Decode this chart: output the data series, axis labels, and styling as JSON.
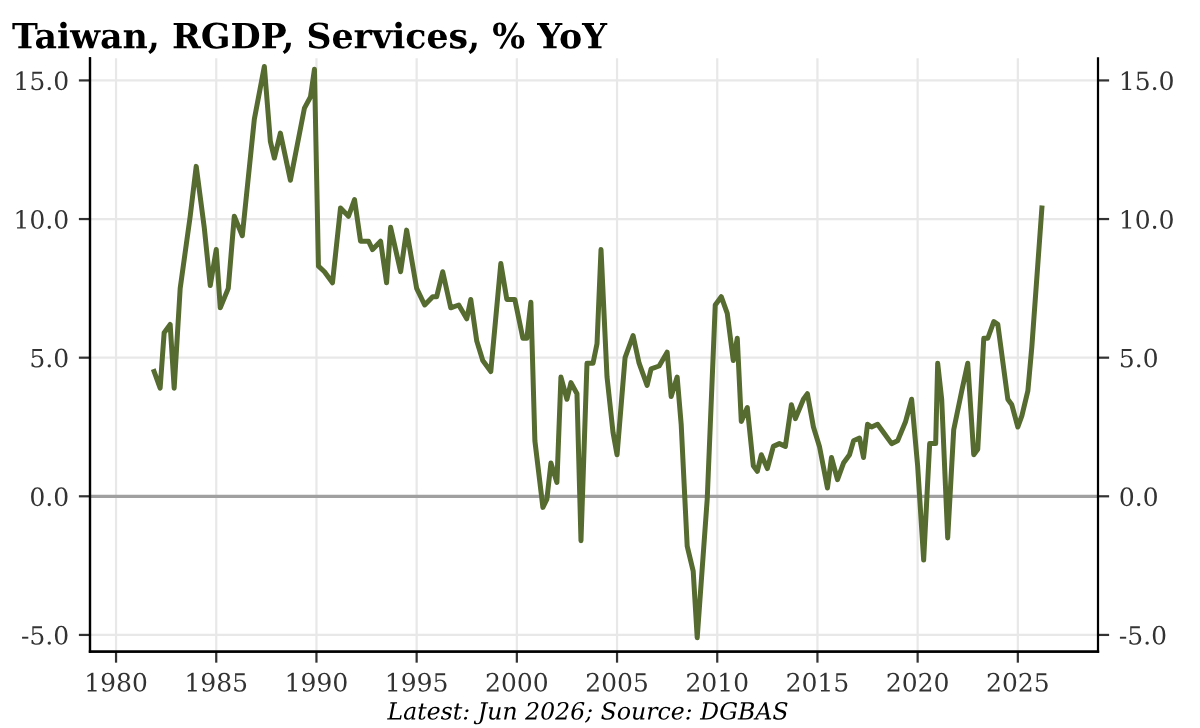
{
  "chart_data": {
    "type": "line",
    "title": "Taiwan, RGDP, Services, % YoY",
    "annotations": [
      "Latest: Jun 2026; Source: DGBAS"
    ],
    "x": [
      1981.9,
      1982.2,
      1982.4,
      1982.7,
      1982.9,
      1983.2,
      1983.7,
      1984.0,
      1984.4,
      1984.7,
      1985.0,
      1985.2,
      1985.6,
      1985.9,
      1986.3,
      1986.9,
      1987.4,
      1987.7,
      1987.9,
      1988.2,
      1988.7,
      1989.4,
      1989.7,
      1989.9,
      1990.1,
      1990.4,
      1990.8,
      1991.2,
      1991.6,
      1991.9,
      1992.2,
      1992.6,
      1992.8,
      1993.2,
      1993.5,
      1993.7,
      1994.2,
      1994.5,
      1995.0,
      1995.4,
      1995.8,
      1996.0,
      1996.3,
      1996.7,
      1997.1,
      1997.5,
      1997.7,
      1998.0,
      1998.3,
      1998.7,
      1999.2,
      1999.5,
      1999.9,
      2000.3,
      2000.5,
      2000.7,
      2000.9,
      2001.3,
      2001.5,
      2001.7,
      2002.0,
      2002.2,
      2002.5,
      2002.7,
      2003.0,
      2003.2,
      2003.5,
      2003.8,
      2004.0,
      2004.2,
      2004.5,
      2004.8,
      2005.0,
      2005.4,
      2005.8,
      2006.1,
      2006.5,
      2006.7,
      2007.1,
      2007.5,
      2007.7,
      2008.0,
      2008.2,
      2008.5,
      2008.8,
      2009.0,
      2009.5,
      2009.9,
      2010.2,
      2010.5,
      2010.8,
      2011.0,
      2011.2,
      2011.5,
      2011.8,
      2012.0,
      2012.2,
      2012.5,
      2012.8,
      2013.1,
      2013.4,
      2013.7,
      2013.9,
      2014.3,
      2014.5,
      2014.8,
      2015.1,
      2015.5,
      2015.7,
      2016.0,
      2016.3,
      2016.6,
      2016.8,
      2017.1,
      2017.3,
      2017.5,
      2017.7,
      2018.0,
      2018.3,
      2018.7,
      2019.0,
      2019.4,
      2019.7,
      2020.0,
      2020.3,
      2020.6,
      2020.9,
      2021.0,
      2021.2,
      2021.5,
      2021.8,
      2022.2,
      2022.5,
      2022.8,
      2023.0,
      2023.3,
      2023.5,
      2023.8,
      2024.0,
      2024.5,
      2024.7,
      2025.0,
      2025.2,
      2025.5,
      2025.7,
      2026.2
    ],
    "series": [
      {
        "color": "#556b2f",
        "values": [
          4.5,
          3.9,
          5.9,
          6.2,
          3.9,
          7.5,
          10.1,
          11.9,
          9.7,
          7.6,
          8.9,
          6.8,
          7.5,
          10.1,
          9.4,
          13.6,
          15.5,
          12.8,
          12.2,
          13.1,
          11.4,
          14.0,
          14.4,
          15.4,
          8.3,
          8.1,
          7.7,
          10.4,
          10.1,
          10.7,
          9.2,
          9.2,
          8.9,
          9.2,
          7.7,
          9.7,
          8.1,
          9.6,
          7.5,
          6.9,
          7.2,
          7.2,
          8.1,
          6.8,
          6.9,
          6.4,
          7.1,
          5.6,
          4.9,
          4.5,
          8.4,
          7.1,
          7.1,
          5.7,
          5.7,
          7.0,
          2.0,
          -0.4,
          -0.1,
          1.2,
          0.5,
          4.3,
          3.5,
          4.1,
          3.7,
          -1.6,
          4.8,
          4.8,
          5.5,
          8.9,
          4.3,
          2.3,
          1.5,
          5.0,
          5.8,
          4.8,
          4.0,
          4.6,
          4.7,
          5.2,
          3.6,
          4.3,
          2.6,
          -1.8,
          -2.7,
          -5.1,
          -0.1,
          6.9,
          7.2,
          6.6,
          4.9,
          5.7,
          2.7,
          3.2,
          1.1,
          0.9,
          1.5,
          1.0,
          1.8,
          1.9,
          1.8,
          3.3,
          2.8,
          3.5,
          3.7,
          2.5,
          1.8,
          0.3,
          1.4,
          0.6,
          1.2,
          1.5,
          2.0,
          2.1,
          1.4,
          2.6,
          2.5,
          2.6,
          2.3,
          1.9,
          2.0,
          2.7,
          3.5,
          1.1,
          -2.3,
          1.9,
          1.9,
          4.8,
          3.5,
          -1.5,
          2.4,
          3.8,
          4.8,
          1.5,
          1.7,
          5.7,
          5.7,
          6.3,
          6.2,
          3.5,
          3.3,
          2.5,
          2.9,
          3.8,
          5.4,
          10.4
        ]
      }
    ],
    "xlim": [
      1978.7,
      2029.0
    ],
    "xticks": [
      1980,
      1985,
      1990,
      1995,
      2000,
      2005,
      2010,
      2015,
      2020,
      2025
    ],
    "ylim": [
      -5.6,
      15.8
    ],
    "yticks": [
      {
        "value": -5,
        "label": "-5.0"
      },
      {
        "value": 0,
        "label": "0.0"
      },
      {
        "value": 5,
        "label": "5.0"
      },
      {
        "value": 10,
        "label": "10.0"
      },
      {
        "value": 15,
        "label": "15.0"
      }
    ],
    "y2lim": [
      -5.6,
      15.8
    ],
    "y2ticks": [
      {
        "value": -5,
        "label": "-5.0"
      },
      {
        "value": 0,
        "label": "0.0"
      },
      {
        "value": 5,
        "label": "5.0"
      },
      {
        "value": 10,
        "label": "10.0"
      },
      {
        "value": 15,
        "label": "15.0"
      }
    ],
    "ref_lines": [
      {
        "axis": "y",
        "value": 0,
        "color": "#a0a0a0"
      }
    ],
    "grid": true,
    "marker": "none",
    "line_style": "solid"
  }
}
